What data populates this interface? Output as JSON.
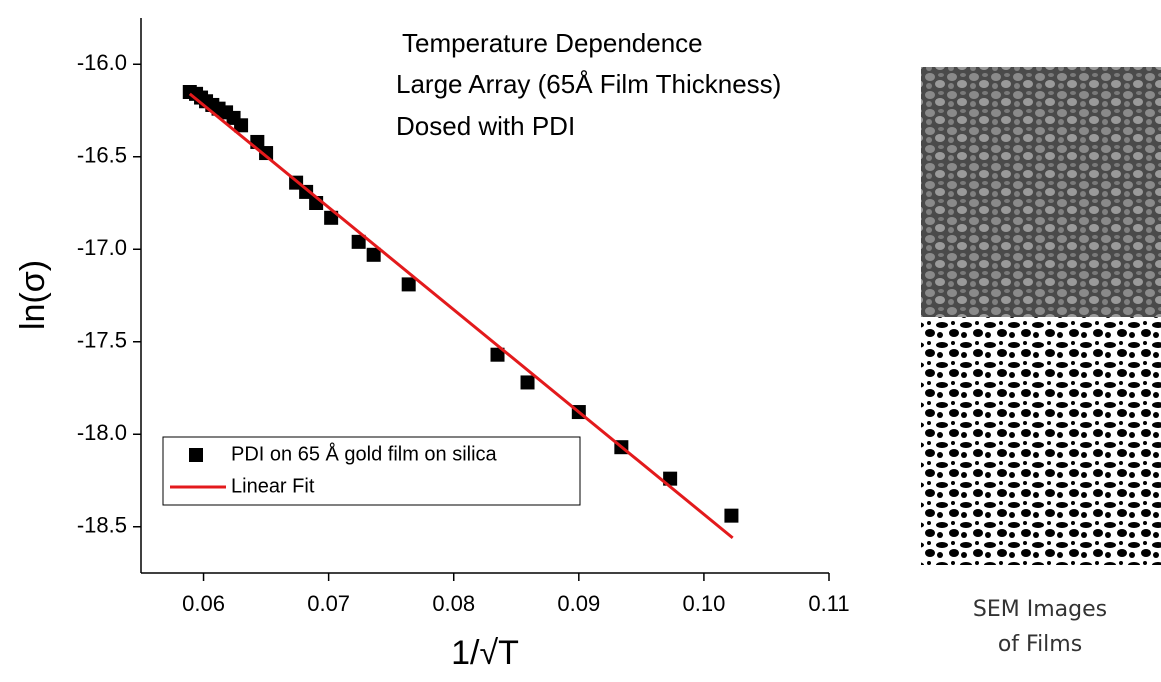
{
  "chart_data": {
    "type": "scatter",
    "title": [
      "Temperature Dependence",
      "Large Array (65Å Film Thickness)",
      "Dosed with PDI"
    ],
    "x_label": "1/√T",
    "y_label": "ln(σ)",
    "xlim": [
      0.055,
      0.11
    ],
    "xticks": [
      0.06,
      0.07,
      0.08,
      0.09,
      {
        "value": 0.1,
        "label": "0.10"
      },
      0.11
    ],
    "ylim": [
      -18.75,
      -15.75
    ],
    "yticks": [
      {
        "value": -16,
        "label": "-16.0"
      },
      -16.5,
      {
        "value": -17,
        "label": "-17.0"
      },
      -17.5,
      {
        "value": -18,
        "label": "-18.0"
      },
      -18.5
    ],
    "legend": "lower left",
    "series": [
      {
        "name": "PDI on 65 Å gold film on silica",
        "color": "#000000",
        "marker": "square",
        "x": [
          0.0589,
          0.0594,
          0.0598,
          0.0602,
          0.0607,
          0.0612,
          0.0618,
          0.0624,
          0.063,
          0.0643,
          0.065,
          0.0674,
          0.0682,
          0.069,
          0.0702,
          0.0724,
          0.0736,
          0.0764,
          0.0835,
          0.0859,
          0.09,
          0.0934,
          0.0973,
          0.1022
        ],
        "values": [
          -16.15,
          -16.16,
          -16.18,
          -16.2,
          -16.22,
          -16.24,
          -16.26,
          -16.29,
          -16.33,
          -16.42,
          -16.48,
          -16.64,
          -16.69,
          -16.75,
          -16.83,
          -16.96,
          -17.03,
          -17.19,
          -17.57,
          -17.72,
          -17.88,
          -18.07,
          -18.24,
          -18.44
        ]
      },
      {
        "name": "Linear Fit",
        "color": "#e31a1c",
        "marker": "line",
        "x": [
          0.0589,
          0.1023
        ],
        "values": [
          -16.16,
          -18.56
        ]
      }
    ]
  },
  "images": {
    "caption": [
      "SEM Images",
      "of Films"
    ]
  }
}
